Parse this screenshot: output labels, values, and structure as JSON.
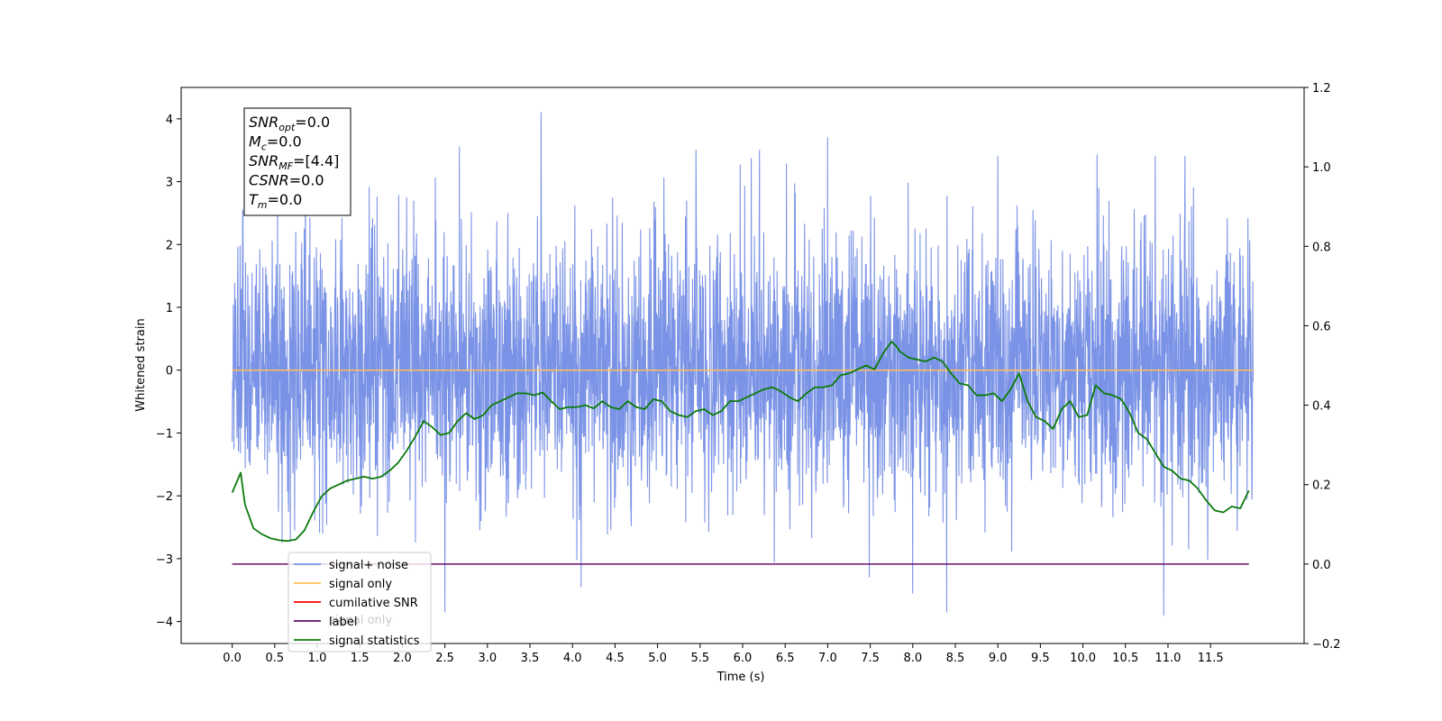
{
  "chart_data": {
    "type": "line",
    "xlabel": "Time (s)",
    "ylabel": "Whitened strain",
    "ylabel_right": "",
    "xlim": [
      -0.6,
      12.6
    ],
    "ylim": [
      -4.35,
      4.5
    ],
    "ylim_right": [
      -0.2,
      1.2
    ],
    "x_ticks": [
      0.0,
      0.5,
      1.0,
      1.5,
      2.0,
      2.5,
      3.0,
      3.5,
      4.0,
      4.5,
      5.0,
      5.5,
      6.0,
      6.5,
      7.0,
      7.5,
      8.0,
      8.5,
      9.0,
      9.5,
      10.0,
      10.5,
      11.0,
      11.5
    ],
    "x_tick_labels": [
      "0.0",
      "0.5",
      "1.0",
      "1.5",
      "2.0",
      "2.5",
      "3.0",
      "3.5",
      "4.0",
      "4.5",
      "5.0",
      "5.5",
      "6.0",
      "6.5",
      "7.0",
      "7.5",
      "8.0",
      "8.5",
      "9.0",
      "9.5",
      "10.0",
      "10.5",
      "11.0",
      "11.5"
    ],
    "y_ticks": [
      -4,
      -3,
      -2,
      -1,
      0,
      1,
      2,
      3,
      4
    ],
    "y_tick_labels": [
      "−4",
      "−3",
      "−2",
      "−1",
      "0",
      "1",
      "2",
      "3",
      "4"
    ],
    "y_ticks_right": [
      -0.2,
      0.0,
      0.2,
      0.4,
      0.6,
      0.8,
      1.0,
      1.2
    ],
    "y_tick_labels_right": [
      "−0.2",
      "0.0",
      "0.2",
      "0.4",
      "0.6",
      "0.8",
      "1.0",
      "1.2"
    ],
    "grid": false,
    "legend_position": "lower-left",
    "series": [
      {
        "name": "signal+ noise",
        "axis": "left",
        "color": "#7b93e6",
        "x_range": [
          0.0,
          12.0
        ],
        "style": "dense whitened noise, approximately mean 0.0, std 1.0, extremes from about −3.9 to 4.1",
        "peaks": [
          {
            "x": 3.63,
            "y": 4.1
          },
          {
            "x": 2.67,
            "y": 3.55
          },
          {
            "x": 5.45,
            "y": 3.5
          },
          {
            "x": 6.2,
            "y": 3.5
          },
          {
            "x": 7.0,
            "y": 3.7
          },
          {
            "x": 9.0,
            "y": 3.4
          },
          {
            "x": 10.85,
            "y": 3.4
          },
          {
            "x": 11.2,
            "y": 3.4
          }
        ],
        "troughs": [
          {
            "x": 2.5,
            "y": -3.85
          },
          {
            "x": 8.4,
            "y": -3.85
          },
          {
            "x": 10.95,
            "y": -3.9
          },
          {
            "x": 4.1,
            "y": -3.45
          },
          {
            "x": 8.0,
            "y": -3.55
          }
        ]
      },
      {
        "name": "signal only",
        "axis": "left",
        "color": "#ffbf5a",
        "x": [
          0.0,
          12.0
        ],
        "y": [
          0.0,
          0.0
        ]
      },
      {
        "name": "cumilative SNR",
        "axis": "left",
        "color": "#ff0000",
        "x": [],
        "y": []
      },
      {
        "name": "label",
        "axis": "right",
        "color": "#6a0f6a",
        "x": [
          0.0,
          11.95
        ],
        "y": [
          0.0,
          0.0
        ]
      },
      {
        "name": "signal statistics",
        "axis": "right",
        "color": "#0b7a0b",
        "x": [
          0.0,
          0.1,
          0.15,
          0.25,
          0.35,
          0.45,
          0.55,
          0.65,
          0.75,
          0.85,
          0.95,
          1.05,
          1.15,
          1.25,
          1.35,
          1.45,
          1.55,
          1.65,
          1.75,
          1.85,
          1.95,
          2.05,
          2.15,
          2.25,
          2.35,
          2.45,
          2.55,
          2.65,
          2.75,
          2.85,
          2.95,
          3.05,
          3.15,
          3.25,
          3.35,
          3.45,
          3.55,
          3.65,
          3.75,
          3.85,
          3.95,
          4.05,
          4.15,
          4.25,
          4.35,
          4.45,
          4.55,
          4.65,
          4.75,
          4.85,
          4.95,
          5.05,
          5.15,
          5.25,
          5.35,
          5.45,
          5.55,
          5.65,
          5.75,
          5.85,
          5.95,
          6.05,
          6.15,
          6.25,
          6.35,
          6.45,
          6.55,
          6.65,
          6.75,
          6.85,
          6.95,
          7.05,
          7.15,
          7.25,
          7.35,
          7.45,
          7.55,
          7.65,
          7.75,
          7.8,
          7.85,
          7.95,
          8.05,
          8.15,
          8.25,
          8.35,
          8.45,
          8.55,
          8.65,
          8.75,
          8.85,
          8.95,
          9.05,
          9.15,
          9.25,
          9.35,
          9.45,
          9.55,
          9.65,
          9.75,
          9.85,
          9.95,
          10.05,
          10.15,
          10.25,
          10.35,
          10.45,
          10.55,
          10.65,
          10.75,
          10.85,
          10.95,
          11.05,
          11.15,
          11.25,
          11.35,
          11.45,
          11.55,
          11.65,
          11.75,
          11.85,
          11.95
        ],
        "y": [
          0.18,
          0.23,
          0.15,
          0.09,
          0.075,
          0.065,
          0.06,
          0.058,
          0.062,
          0.085,
          0.13,
          0.17,
          0.19,
          0.2,
          0.21,
          0.215,
          0.22,
          0.215,
          0.22,
          0.235,
          0.255,
          0.285,
          0.32,
          0.36,
          0.345,
          0.325,
          0.33,
          0.36,
          0.38,
          0.365,
          0.375,
          0.4,
          0.41,
          0.42,
          0.43,
          0.43,
          0.425,
          0.432,
          0.41,
          0.39,
          0.395,
          0.395,
          0.4,
          0.392,
          0.41,
          0.395,
          0.39,
          0.41,
          0.395,
          0.39,
          0.415,
          0.41,
          0.385,
          0.375,
          0.37,
          0.385,
          0.39,
          0.375,
          0.385,
          0.41,
          0.41,
          0.42,
          0.43,
          0.44,
          0.445,
          0.435,
          0.42,
          0.41,
          0.43,
          0.445,
          0.445,
          0.45,
          0.475,
          0.48,
          0.49,
          0.5,
          0.49,
          0.53,
          0.56,
          0.55,
          0.535,
          0.52,
          0.515,
          0.51,
          0.52,
          0.51,
          0.48,
          0.455,
          0.45,
          0.425,
          0.425,
          0.43,
          0.41,
          0.44,
          0.48,
          0.41,
          0.37,
          0.36,
          0.34,
          0.39,
          0.41,
          0.37,
          0.375,
          0.45,
          0.43,
          0.425,
          0.415,
          0.38,
          0.33,
          0.315,
          0.28,
          0.245,
          0.235,
          0.215,
          0.21,
          0.19,
          0.16,
          0.135,
          0.13,
          0.145,
          0.14,
          0.185
        ]
      }
    ],
    "legend": [
      {
        "label": "signal+ noise",
        "color": "#7b93e6"
      },
      {
        "label": "signal only",
        "color": "#ffbf5a"
      },
      {
        "label": "cumilative SNR",
        "color": "#ff0000"
      },
      {
        "label": "label",
        "color": "#6a0f6a"
      },
      {
        "label": "signal statistics",
        "color": "#0b7a0b"
      }
    ],
    "legend_overlap_text": [
      "signal only"
    ],
    "annotations": [
      {
        "symbol": "SNR",
        "subscript": "opt",
        "value": "=0.0"
      },
      {
        "symbol": "M",
        "subscript": "c",
        "value": "=0.0"
      },
      {
        "symbol": "SNR",
        "subscript": "MF",
        "value": "=[4.4]"
      },
      {
        "symbol": "CSNR",
        "subscript": "",
        "value": "=0.0"
      },
      {
        "symbol": "T",
        "subscript": "m",
        "value": "=0.0"
      }
    ]
  }
}
